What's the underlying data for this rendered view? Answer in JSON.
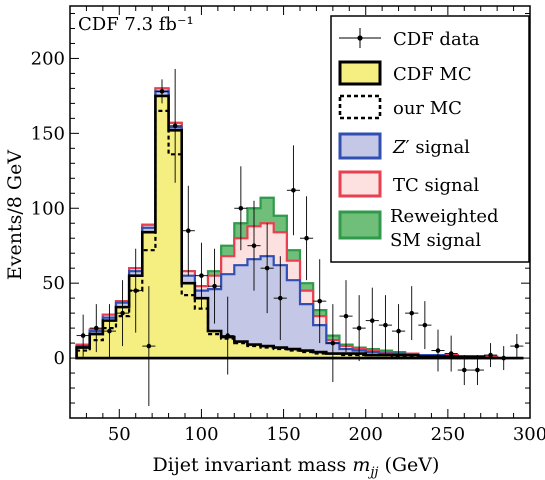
{
  "chart_data": {
    "type": "histogram-step",
    "annotation": "CDF 7.3 fb⁻¹",
    "xlabel_main": "Dijet invariant mass ",
    "xlabel_var": "m",
    "xlabel_sub": "jj",
    "xlabel_unit": " (GeV)",
    "ylabel": "Events/8 GeV",
    "xlim": [
      20,
      300
    ],
    "ylim": [
      -40,
      235
    ],
    "xticks": [
      50,
      100,
      150,
      200,
      250,
      300
    ],
    "yticks": [
      0,
      50,
      100,
      150,
      200
    ],
    "bin_edges": [
      24,
      32,
      40,
      48,
      56,
      64,
      72,
      80,
      88,
      96,
      104,
      112,
      120,
      128,
      136,
      144,
      152,
      160,
      168,
      176,
      184,
      192,
      200,
      208,
      216,
      224,
      232,
      240,
      248,
      256,
      264,
      272,
      280,
      288,
      296
    ],
    "legend": [
      {
        "key": "data",
        "label": "CDF data",
        "kind": "errorbar"
      },
      {
        "key": "cdf_mc",
        "label": "CDF MC",
        "kind": "box",
        "fill": "#f5ef82",
        "stroke": "#000000"
      },
      {
        "key": "our_mc",
        "label": "our MC",
        "kind": "dashed",
        "stroke": "#000000"
      },
      {
        "key": "zprime",
        "label_var": "Z",
        "label_prime": "′",
        "label": " signal",
        "kind": "box",
        "fill": "#c5c7e6",
        "stroke": "#2f4fb3"
      },
      {
        "key": "tc",
        "label": "TC signal",
        "kind": "box",
        "fill": "#fde0e0",
        "stroke": "#e84050"
      },
      {
        "key": "rw",
        "label": "Reweighted",
        "label2": "SM signal",
        "kind": "box",
        "fill": "#6fbf7a",
        "stroke": "#2f9a4a"
      }
    ],
    "series": [
      {
        "key": "rw",
        "fill": "#6fbf7a",
        "stroke": "#2f9a4a",
        "values": [
          9,
          19,
          29,
          38,
          60,
          89,
          180,
          157,
          58,
          48,
          58,
          75,
          90,
          100,
          107,
          95,
          72,
          50,
          32,
          15,
          9,
          7,
          6,
          5,
          4,
          3,
          2,
          2,
          2,
          1,
          1,
          1,
          0,
          0
        ]
      },
      {
        "key": "tc",
        "fill": "#fde0e0",
        "stroke": "#e84050",
        "values": [
          9,
          19,
          29,
          38,
          60,
          89,
          180,
          157,
          58,
          48,
          55,
          68,
          80,
          88,
          90,
          84,
          65,
          45,
          28,
          12,
          8,
          6,
          5,
          4,
          3,
          3,
          2,
          2,
          2,
          1,
          1,
          1,
          0,
          0
        ]
      },
      {
        "key": "zprime",
        "fill": "#c5c7e6",
        "stroke": "#2f4fb3",
        "values": [
          8,
          18,
          27,
          37,
          58,
          87,
          178,
          154,
          55,
          45,
          46,
          56,
          62,
          66,
          68,
          62,
          52,
          36,
          22,
          10,
          6,
          5,
          4,
          3,
          3,
          2,
          2,
          2,
          1,
          1,
          1,
          0,
          0,
          0
        ]
      },
      {
        "key": "cdf_mc",
        "fill": "#f5ef82",
        "stroke": "#000000",
        "values": [
          7,
          16,
          25,
          34,
          55,
          84,
          175,
          152,
          50,
          40,
          18,
          14,
          11,
          9,
          8,
          7,
          6,
          5,
          4,
          3,
          3,
          3,
          2,
          2,
          2,
          2,
          1,
          1,
          1,
          1,
          1,
          0,
          0,
          0
        ]
      }
    ],
    "our_mc": [
      5,
      12,
      20,
      28,
      45,
      72,
      165,
      136,
      42,
      33,
      16,
      13,
      10,
      8,
      7,
      6,
      5,
      4,
      3,
      3,
      2,
      2,
      2,
      2,
      1,
      1,
      1,
      1,
      1,
      0,
      0,
      0,
      0,
      0
    ],
    "data_points": [
      {
        "x": 28,
        "y": 15,
        "e": 14
      },
      {
        "x": 36,
        "y": 20,
        "e": 16
      },
      {
        "x": 44,
        "y": 18,
        "e": 18
      },
      {
        "x": 52,
        "y": 30,
        "e": 22
      },
      {
        "x": 60,
        "y": 45,
        "e": 28
      },
      {
        "x": 68,
        "y": 8,
        "e": 40
      },
      {
        "x": 76,
        "y": 178,
        "e": 8
      },
      {
        "x": 84,
        "y": 155,
        "e": 38
      },
      {
        "x": 92,
        "y": 85,
        "e": 30
      },
      {
        "x": 100,
        "y": 55,
        "e": 22
      },
      {
        "x": 108,
        "y": 48,
        "e": 25
      },
      {
        "x": 116,
        "y": 15,
        "e": 26
      },
      {
        "x": 124,
        "y": 100,
        "e": 28
      },
      {
        "x": 132,
        "y": 75,
        "e": 30
      },
      {
        "x": 140,
        "y": 60,
        "e": 30
      },
      {
        "x": 148,
        "y": 40,
        "e": 28
      },
      {
        "x": 156,
        "y": 112,
        "e": 30
      },
      {
        "x": 164,
        "y": 80,
        "e": 28
      },
      {
        "x": 172,
        "y": 38,
        "e": 28
      },
      {
        "x": 180,
        "y": 10,
        "e": 26
      },
      {
        "x": 188,
        "y": 28,
        "e": 24
      },
      {
        "x": 196,
        "y": 20,
        "e": 22
      },
      {
        "x": 204,
        "y": 25,
        "e": 22
      },
      {
        "x": 212,
        "y": 22,
        "e": 20
      },
      {
        "x": 220,
        "y": 18,
        "e": 18
      },
      {
        "x": 228,
        "y": 30,
        "e": 18
      },
      {
        "x": 236,
        "y": 22,
        "e": 16
      },
      {
        "x": 244,
        "y": 5,
        "e": 14
      },
      {
        "x": 252,
        "y": 3,
        "e": 12
      },
      {
        "x": 260,
        "y": -8,
        "e": 10
      },
      {
        "x": 268,
        "y": -8,
        "e": 10
      },
      {
        "x": 276,
        "y": 2,
        "e": 8
      },
      {
        "x": 284,
        "y": 0,
        "e": 8
      },
      {
        "x": 292,
        "y": 8,
        "e": 8
      }
    ]
  }
}
